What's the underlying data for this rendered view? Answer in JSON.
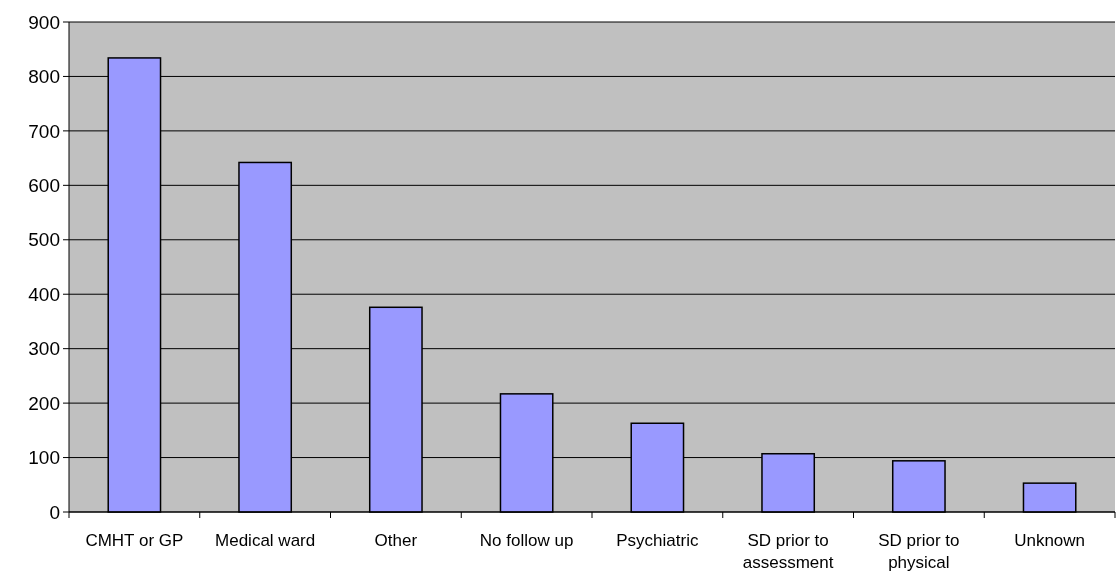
{
  "chart_data": {
    "type": "bar",
    "categories": [
      "CMHT or GP",
      "Medical ward",
      "Other",
      "No follow up",
      "Psychiatric",
      "SD prior to assessment",
      "SD prior to physical",
      "Unknown"
    ],
    "values": [
      834,
      642,
      376,
      217,
      163,
      107,
      94,
      53
    ],
    "color": "#9999ff",
    "ylim": [
      0,
      900
    ],
    "yticks": [
      0,
      100,
      200,
      300,
      400,
      500,
      600,
      700,
      800,
      900
    ],
    "grid": "y"
  }
}
